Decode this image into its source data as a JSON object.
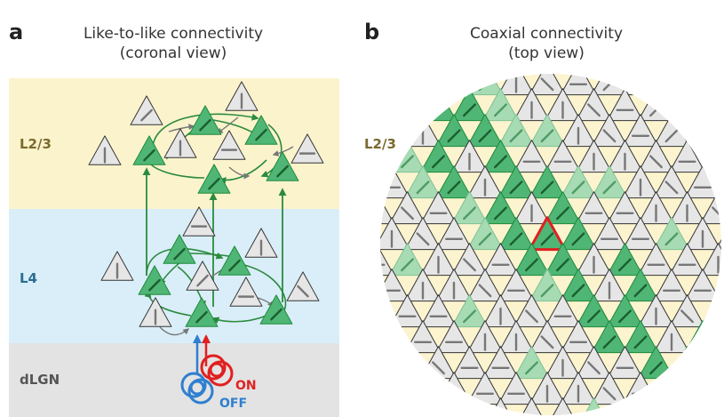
{
  "panel_a": {
    "letter": "a",
    "title_line1": "Like-to-like connectivity",
    "title_line2": "(coronal view)",
    "layers": {
      "l23": "L2/3",
      "l4": "L4",
      "dlgn": "dLGN"
    },
    "inputs": {
      "on": "ON",
      "off": "OFF"
    }
  },
  "panel_b": {
    "letter": "b",
    "title_line1": "Coaxial connectivity",
    "title_line2": "(top view)",
    "layer": "L2/3"
  },
  "colors": {
    "l23_band": "#fbf3cc",
    "l4_band": "#d9eef8",
    "dlgn_band": "#e3e3e3",
    "green_fill": "#4fb676",
    "green_light": "#a7dbb4",
    "green_stroke": "#1e8a3c",
    "green_arrow": "#2b8a3e",
    "grey_fill": "#e6e6e6",
    "grey_stroke": "#333333",
    "on_red": "#e02020",
    "off_blue": "#2f7fd0",
    "l23_text": "#7a6a2e",
    "l4_text": "#2a6d8f",
    "dlgn_text": "#555555",
    "highlight": "#e02020",
    "circle_fill": "#fcf4cf"
  }
}
